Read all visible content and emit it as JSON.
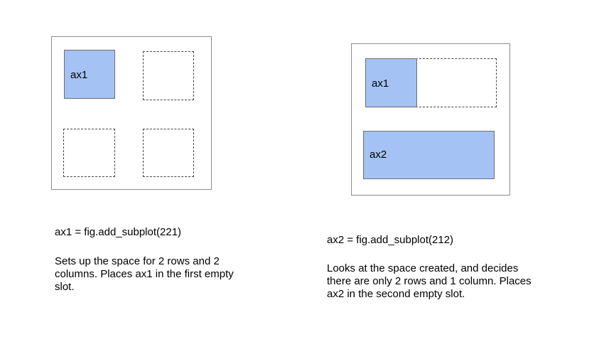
{
  "colors": {
    "axes_fill": "#a4c2f4",
    "frame_border": "#8c8c8c",
    "slot_border": "#444444"
  },
  "left_panel": {
    "ax1_label": "ax1",
    "code": "ax1 = fig.add_subplot(221)",
    "description": "Sets up the space for 2 rows and 2 columns. Places ax1 in the first empty slot."
  },
  "right_panel": {
    "ax1_label": "ax1",
    "ax2_label": "ax2",
    "code": "ax2 = fig.add_subplot(212)",
    "description": "Looks at the space created, and decides there are only 2 rows and 1 column. Places ax2 in the second empty slot."
  }
}
